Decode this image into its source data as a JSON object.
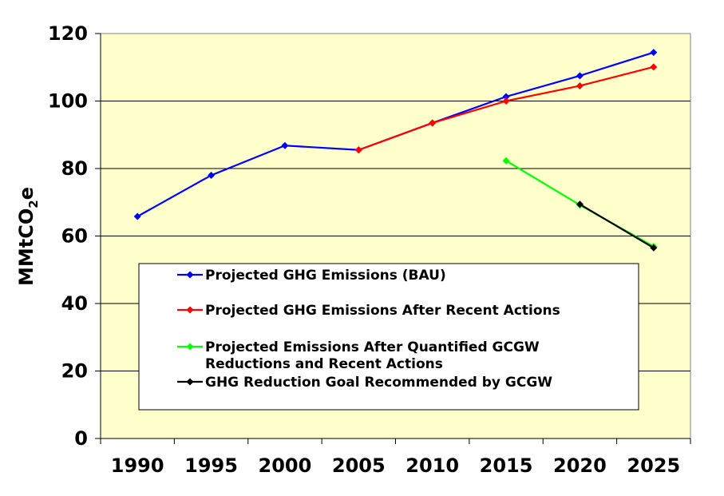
{
  "chart_data": {
    "type": "line",
    "title": "",
    "xlabel": "",
    "ylabel": "MMtCO2e",
    "ylabel_parts": {
      "main": "MMtCO",
      "sub": "2",
      "tail": "e"
    },
    "x_ticks": [
      "1990",
      "1995",
      "2000",
      "2005",
      "2010",
      "2015",
      "2020",
      "2025"
    ],
    "ylim": [
      0,
      120
    ],
    "y_ticks": [
      0,
      20,
      40,
      60,
      80,
      100,
      120
    ],
    "grid": true,
    "plot_background": "#FFFFCC",
    "legend_position": "lower-center",
    "series": [
      {
        "name": "Projected GHG Emissions (BAU)",
        "color": "#0000FF",
        "points": [
          [
            1990,
            65.8
          ],
          [
            1995,
            78.0
          ],
          [
            2000,
            86.8
          ],
          [
            2005,
            85.5
          ],
          [
            2010,
            93.5
          ],
          [
            2015,
            101.3
          ],
          [
            2020,
            107.5
          ],
          [
            2025,
            114.4
          ]
        ]
      },
      {
        "name": "Projected GHG Emissions After Recent Actions",
        "color": "#FF0000",
        "points": [
          [
            2005,
            85.5
          ],
          [
            2010,
            93.5
          ],
          [
            2015,
            100.0
          ],
          [
            2020,
            104.5
          ],
          [
            2025,
            110.1
          ]
        ]
      },
      {
        "name": "Projected Emissions After Quantified GCGW Reductions and Recent Actions",
        "legend_lines": [
          "Projected Emissions After Quantified GCGW",
          "Reductions and Recent Actions"
        ],
        "color": "#00FF00",
        "points": [
          [
            2015,
            82.3
          ],
          [
            2020,
            69.2
          ],
          [
            2025,
            56.9
          ]
        ]
      },
      {
        "name": "GHG Reduction Goal Recommended by GCGW",
        "color": "#000000",
        "points": [
          [
            2020,
            69.4
          ],
          [
            2025,
            56.5
          ]
        ]
      }
    ]
  }
}
